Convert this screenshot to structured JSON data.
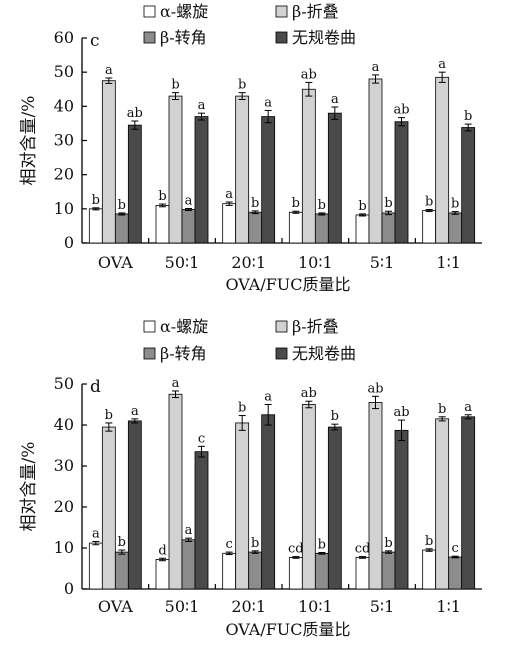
{
  "chart_data": [
    {
      "type": "bar",
      "panel_label": "c",
      "categories": [
        "OVA",
        "50∶1",
        "20∶1",
        "10∶1",
        "5∶1",
        "1∶1"
      ],
      "xlabel": "OVA/FUC质量比",
      "ylabel": "相对含量/%",
      "ylim": [
        0,
        60
      ],
      "yticks": [
        0,
        10,
        20,
        30,
        40,
        50,
        60
      ],
      "grid": false,
      "legend_position": "top",
      "series": [
        {
          "name": "α-螺旋",
          "color": "#ffffff",
          "values": [
            10.0,
            11.0,
            11.5,
            9.0,
            8.2,
            9.5
          ],
          "errors": [
            0.3,
            0.4,
            0.5,
            0.3,
            0.3,
            0.3
          ],
          "labels": [
            "b",
            "b",
            "a",
            "b",
            "b",
            "b"
          ]
        },
        {
          "name": "β-折叠",
          "color": "#d2d2d2",
          "values": [
            47.5,
            43.0,
            43.0,
            45.0,
            48.0,
            48.5
          ],
          "errors": [
            0.8,
            1.0,
            1.0,
            2.0,
            1.2,
            1.5
          ],
          "labels": [
            "a",
            "b",
            "b",
            "ab",
            "a",
            "a"
          ]
        },
        {
          "name": "β-转角",
          "color": "#8c8c8c",
          "values": [
            8.5,
            9.8,
            9.0,
            8.5,
            8.8,
            8.8
          ],
          "errors": [
            0.3,
            0.3,
            0.4,
            0.3,
            0.5,
            0.4
          ],
          "labels": [
            "b",
            "a",
            "b",
            "b",
            "b",
            "b"
          ]
        },
        {
          "name": "无规卷曲",
          "color": "#4a4a4a",
          "values": [
            34.5,
            37.0,
            37.0,
            38.0,
            35.5,
            33.8
          ],
          "errors": [
            1.2,
            1.0,
            1.8,
            1.8,
            1.2,
            1.0
          ],
          "labels": [
            "ab",
            "a",
            "a",
            "a",
            "ab",
            "b"
          ]
        }
      ]
    },
    {
      "type": "bar",
      "panel_label": "d",
      "categories": [
        "OVA",
        "50∶1",
        "20∶1",
        "10∶1",
        "5∶1",
        "1∶1"
      ],
      "xlabel": "OVA/FUC质量比",
      "ylabel": "相对含量/%",
      "ylim": [
        0,
        50
      ],
      "yticks": [
        0,
        10,
        20,
        30,
        40,
        50
      ],
      "grid": false,
      "legend_position": "top",
      "series": [
        {
          "name": "α-螺旋",
          "color": "#ffffff",
          "values": [
            11.2,
            7.2,
            8.7,
            7.7,
            7.7,
            9.5
          ],
          "errors": [
            0.4,
            0.3,
            0.3,
            0.2,
            0.2,
            0.3
          ],
          "labels": [
            "a",
            "d",
            "c",
            "cd",
            "cd",
            "b"
          ]
        },
        {
          "name": "β-折叠",
          "color": "#d2d2d2",
          "values": [
            39.5,
            47.5,
            40.5,
            45.0,
            45.5,
            41.5
          ],
          "errors": [
            1.0,
            0.8,
            1.8,
            0.8,
            1.5,
            0.5
          ],
          "labels": [
            "b",
            "a",
            "b",
            "ab",
            "ab",
            "b"
          ]
        },
        {
          "name": "β-转角",
          "color": "#8c8c8c",
          "values": [
            9.0,
            12.0,
            9.0,
            8.7,
            9.0,
            7.8
          ],
          "errors": [
            0.5,
            0.4,
            0.3,
            0.2,
            0.3,
            0.2
          ],
          "labels": [
            "b",
            "a",
            "b",
            "b",
            "b",
            "c"
          ]
        },
        {
          "name": "无规卷曲",
          "color": "#4a4a4a",
          "values": [
            41.0,
            33.5,
            42.5,
            39.5,
            38.7,
            42.0
          ],
          "errors": [
            0.5,
            1.3,
            2.5,
            0.7,
            2.5,
            0.5
          ],
          "labels": [
            "a",
            "c",
            "a",
            "b",
            "ab",
            "a"
          ]
        }
      ]
    }
  ]
}
